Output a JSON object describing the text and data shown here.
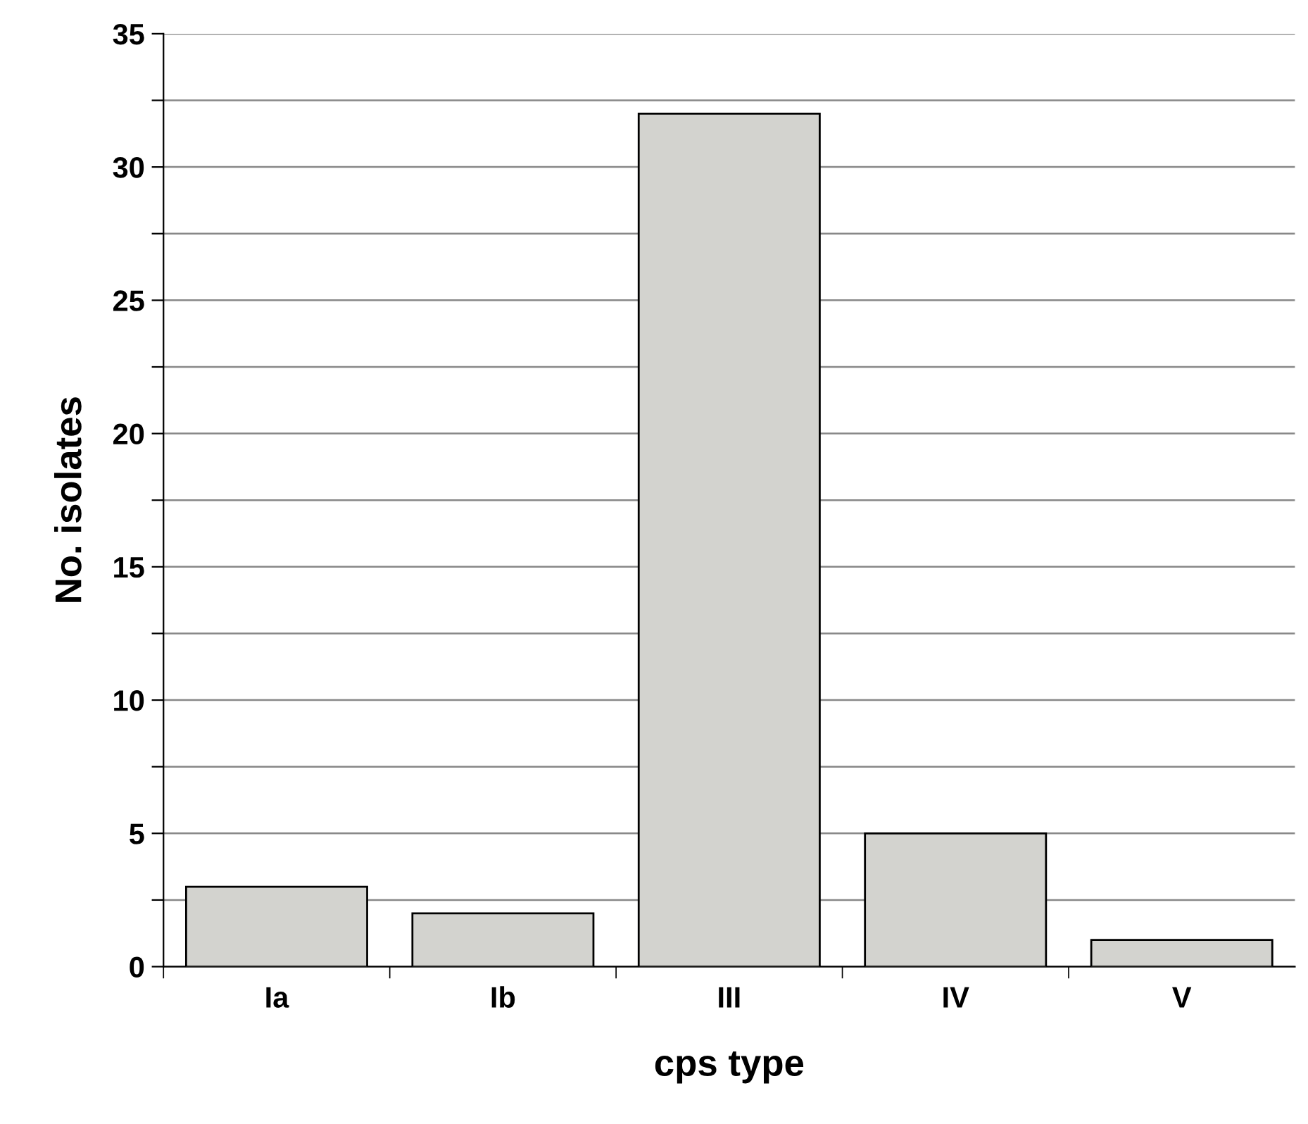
{
  "chart_data": {
    "type": "bar",
    "xlabel": "cps type",
    "ylabel": "No. isolates",
    "categories": [
      "Ia",
      "Ib",
      "III",
      "IV",
      "V"
    ],
    "values": [
      3,
      2,
      32,
      5,
      1
    ],
    "color": "#d3d3cf",
    "ylim": [
      0,
      35
    ],
    "yticks": [
      0,
      {
        "value": 2.5,
        "label": null
      },
      5,
      {
        "value": 7.5,
        "label": null
      },
      10,
      {
        "value": 12.5,
        "label": null
      },
      15,
      {
        "value": 17.5,
        "label": null
      },
      20,
      {
        "value": 22.5,
        "label": null
      },
      25,
      {
        "value": 27.5,
        "label": null
      },
      30,
      {
        "value": 32.5,
        "label": null
      },
      35
    ],
    "grid": "y"
  }
}
